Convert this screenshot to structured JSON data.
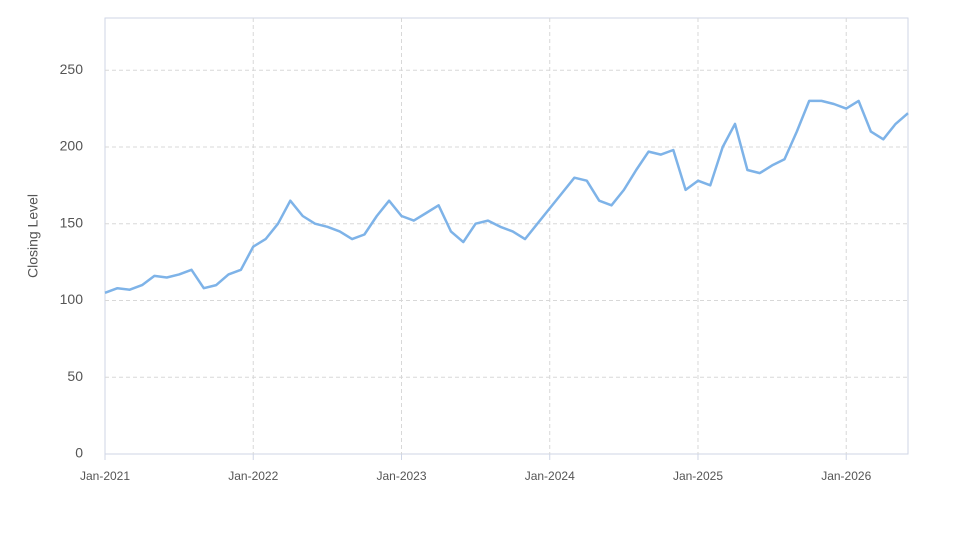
{
  "chart_data": {
    "type": "line",
    "ylabel": "Closing Level",
    "x": [
      "2021-01",
      "2021-02",
      "2021-03",
      "2021-04",
      "2021-05",
      "2021-06",
      "2021-07",
      "2021-08",
      "2021-09",
      "2021-10",
      "2021-11",
      "2021-12",
      "2022-01",
      "2022-02",
      "2022-03",
      "2022-04",
      "2022-05",
      "2022-06",
      "2022-07",
      "2022-08",
      "2022-09",
      "2022-10",
      "2022-11",
      "2022-12",
      "2023-01",
      "2023-02",
      "2023-03",
      "2023-04",
      "2023-05",
      "2023-06",
      "2023-07",
      "2023-08",
      "2023-09",
      "2023-10",
      "2023-11",
      "2023-12",
      "2024-01",
      "2024-02",
      "2024-03",
      "2024-04",
      "2024-05",
      "2024-06",
      "2024-07",
      "2024-08",
      "2024-09",
      "2024-10",
      "2024-11",
      "2024-12",
      "2025-01",
      "2025-02",
      "2025-03",
      "2025-04",
      "2025-05",
      "2025-06",
      "2025-07",
      "2025-08",
      "2025-09",
      "2025-10",
      "2025-11",
      "2025-12",
      "2026-01",
      "2026-02",
      "2026-03",
      "2026-04",
      "2026-05",
      "2026-06"
    ],
    "series": [
      {
        "color": "#7eb3e8",
        "values": [
          105,
          108,
          107,
          110,
          116,
          115,
          117,
          120,
          108,
          110,
          117,
          120,
          135,
          140,
          150,
          165,
          155,
          150,
          148,
          145,
          140,
          143,
          155,
          165,
          155,
          152,
          157,
          162,
          145,
          138,
          150,
          152,
          148,
          145,
          140,
          150,
          160,
          170,
          180,
          178,
          165,
          162,
          172,
          185,
          197,
          195,
          198,
          172,
          178,
          175,
          200,
          215,
          185,
          183,
          188,
          192,
          210,
          230,
          230,
          228,
          225,
          230,
          210,
          205,
          215,
          222
        ]
      }
    ],
    "xlim": [
      "2021-01",
      "2026-06"
    ],
    "xticks": [
      {
        "value": "2021-01",
        "label": "Jan-2021"
      },
      {
        "value": "2022-01",
        "label": "Jan-2022"
      },
      {
        "value": "2023-01",
        "label": "Jan-2023"
      },
      {
        "value": "2024-01",
        "label": "Jan-2024"
      },
      {
        "value": "2025-01",
        "label": "Jan-2025"
      },
      {
        "value": "2026-01",
        "label": "Jan-2026"
      }
    ],
    "ylim": [
      0,
      284
    ],
    "yticks": [
      0,
      50,
      100,
      150,
      200,
      250
    ],
    "grid": true
  }
}
